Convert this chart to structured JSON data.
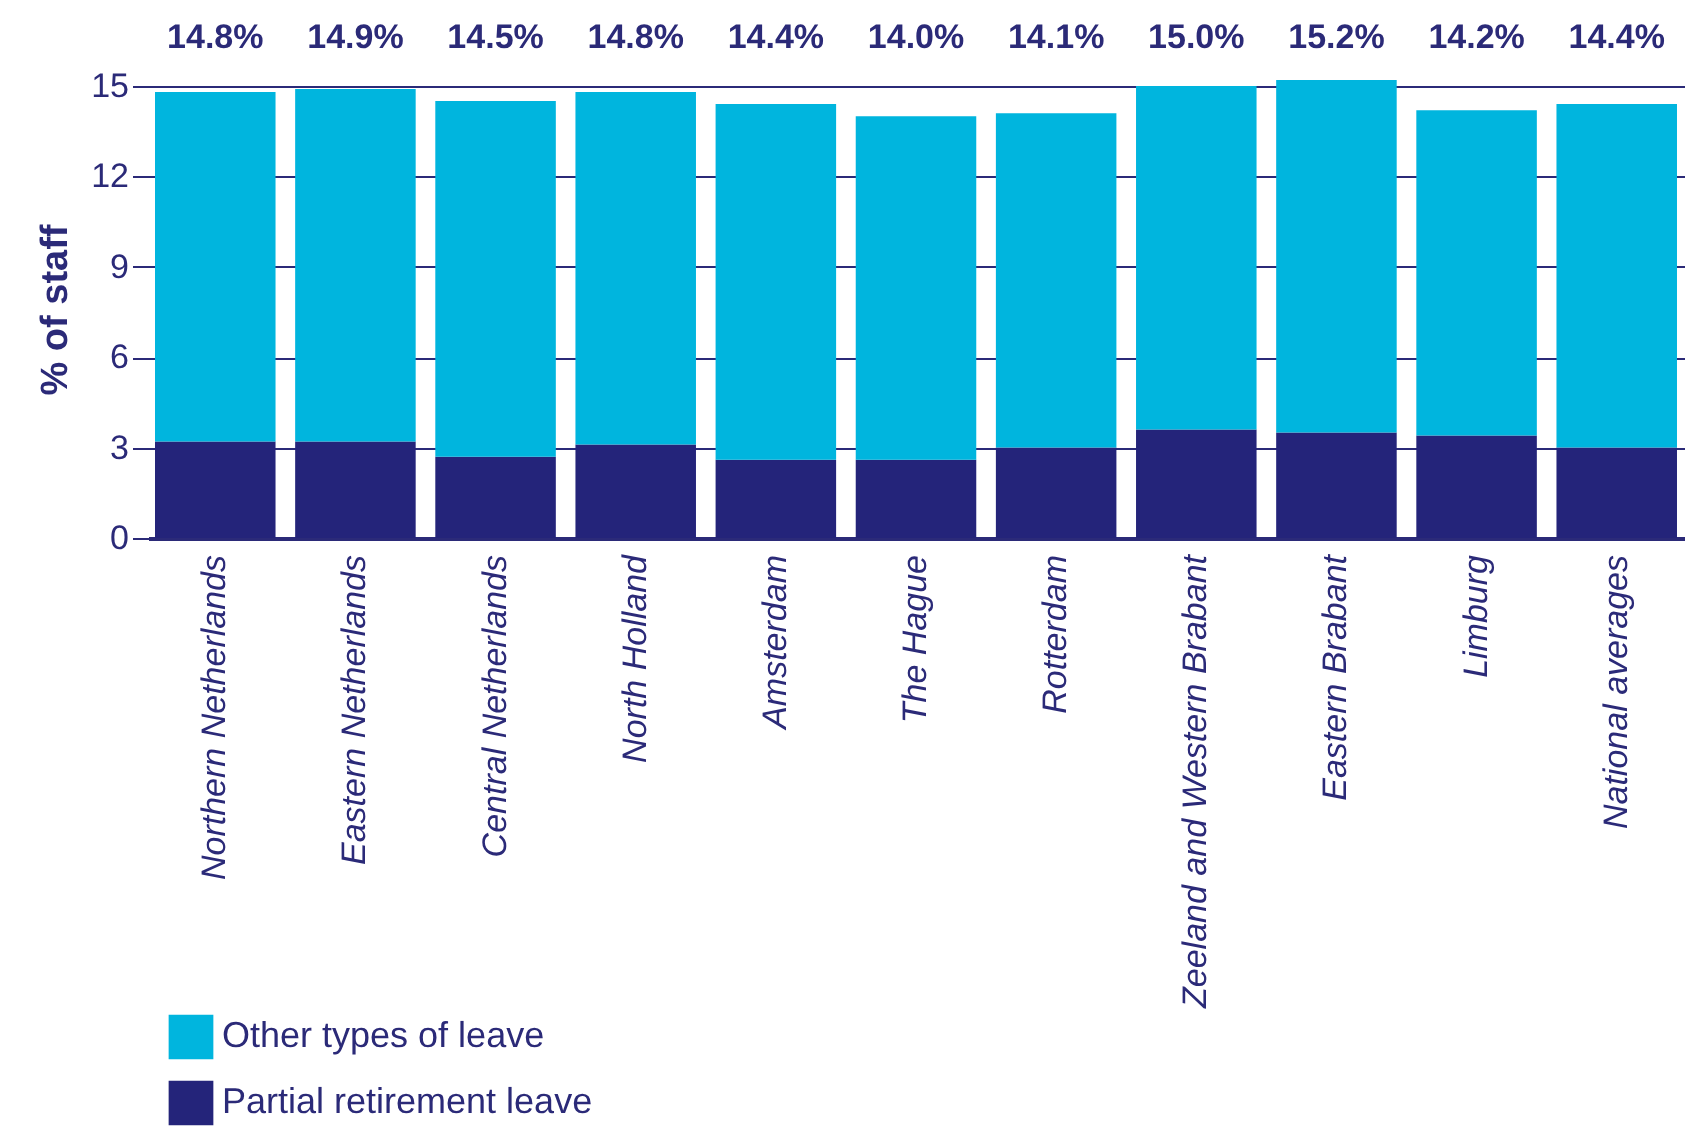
{
  "chart_data": {
    "type": "bar",
    "stacked": true,
    "ylabel": "% of staff",
    "categories": [
      "Northern Netherlands",
      "Eastern Netherlands",
      "Central Netherlands",
      "North Holland",
      "Amsterdam",
      "The Hague",
      "Rotterdam",
      "Zeeland and Western Brabant",
      "Eastern Brabant",
      "Limburg",
      "National averages"
    ],
    "series": [
      {
        "name": "Partial retirement leave",
        "color": "#24247a",
        "values": [
          3.2,
          3.2,
          2.7,
          3.1,
          2.6,
          2.6,
          3.0,
          3.6,
          3.5,
          3.4,
          3.0
        ]
      },
      {
        "name": "Other types of leave",
        "color": "#00b5de",
        "values": [
          11.6,
          11.7,
          11.8,
          11.7,
          11.8,
          11.4,
          11.1,
          11.4,
          11.7,
          10.8,
          11.4
        ]
      }
    ],
    "totals": [
      "14.8%",
      "14.9%",
      "14.5%",
      "14.8%",
      "14.4%",
      "14.0%",
      "14.1%",
      "15.0%",
      "15.2%",
      "14.2%",
      "14.4%"
    ],
    "ylim": [
      0,
      15.2
    ],
    "yticks": [
      0,
      3,
      6,
      9,
      12,
      15
    ],
    "grid": "y",
    "legend": "bottom left"
  }
}
